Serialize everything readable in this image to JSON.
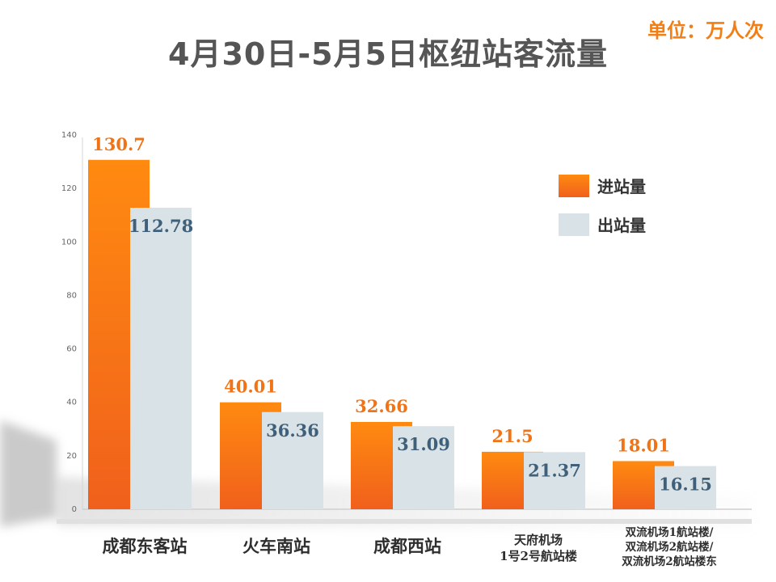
{
  "title": "4月30日-5月5日枢纽站客流量",
  "unit_label": "单位：万人次",
  "colors": {
    "in_top": "#ff8a10",
    "in_bottom": "#f0601c",
    "out": "#d9e2e6",
    "in_label": "#f07417",
    "out_label": "#40607a",
    "title": "#555555",
    "unit": "#f07f17"
  },
  "legend": {
    "placement": "right",
    "items": [
      "进站量",
      "出站量"
    ]
  },
  "chart_data": {
    "type": "bar",
    "categories": [
      [
        "成都东客站"
      ],
      [
        "火车南站"
      ],
      [
        "成都西站"
      ],
      [
        "天府机场",
        "1号2号航站楼"
      ],
      [
        "双流机场1航站楼/",
        "双流机场2航站楼/",
        "双流机场2航站楼东"
      ]
    ],
    "series": [
      {
        "name": "进站量",
        "values": [
          130.7,
          40.01,
          32.66,
          21.5,
          18.01
        ],
        "labels": [
          "130.7",
          "40.01",
          "32.66",
          "21.5",
          "18.01"
        ]
      },
      {
        "name": "出站量",
        "values": [
          112.78,
          36.36,
          31.09,
          21.37,
          16.15
        ],
        "labels": [
          "112.78",
          "36.36",
          "31.09",
          "21.37",
          "16.15"
        ]
      }
    ],
    "ylim": [
      0,
      140
    ],
    "yticks": [
      "0",
      "20",
      "40",
      "60",
      "80",
      "100",
      "120",
      "140"
    ],
    "grid": false
  }
}
